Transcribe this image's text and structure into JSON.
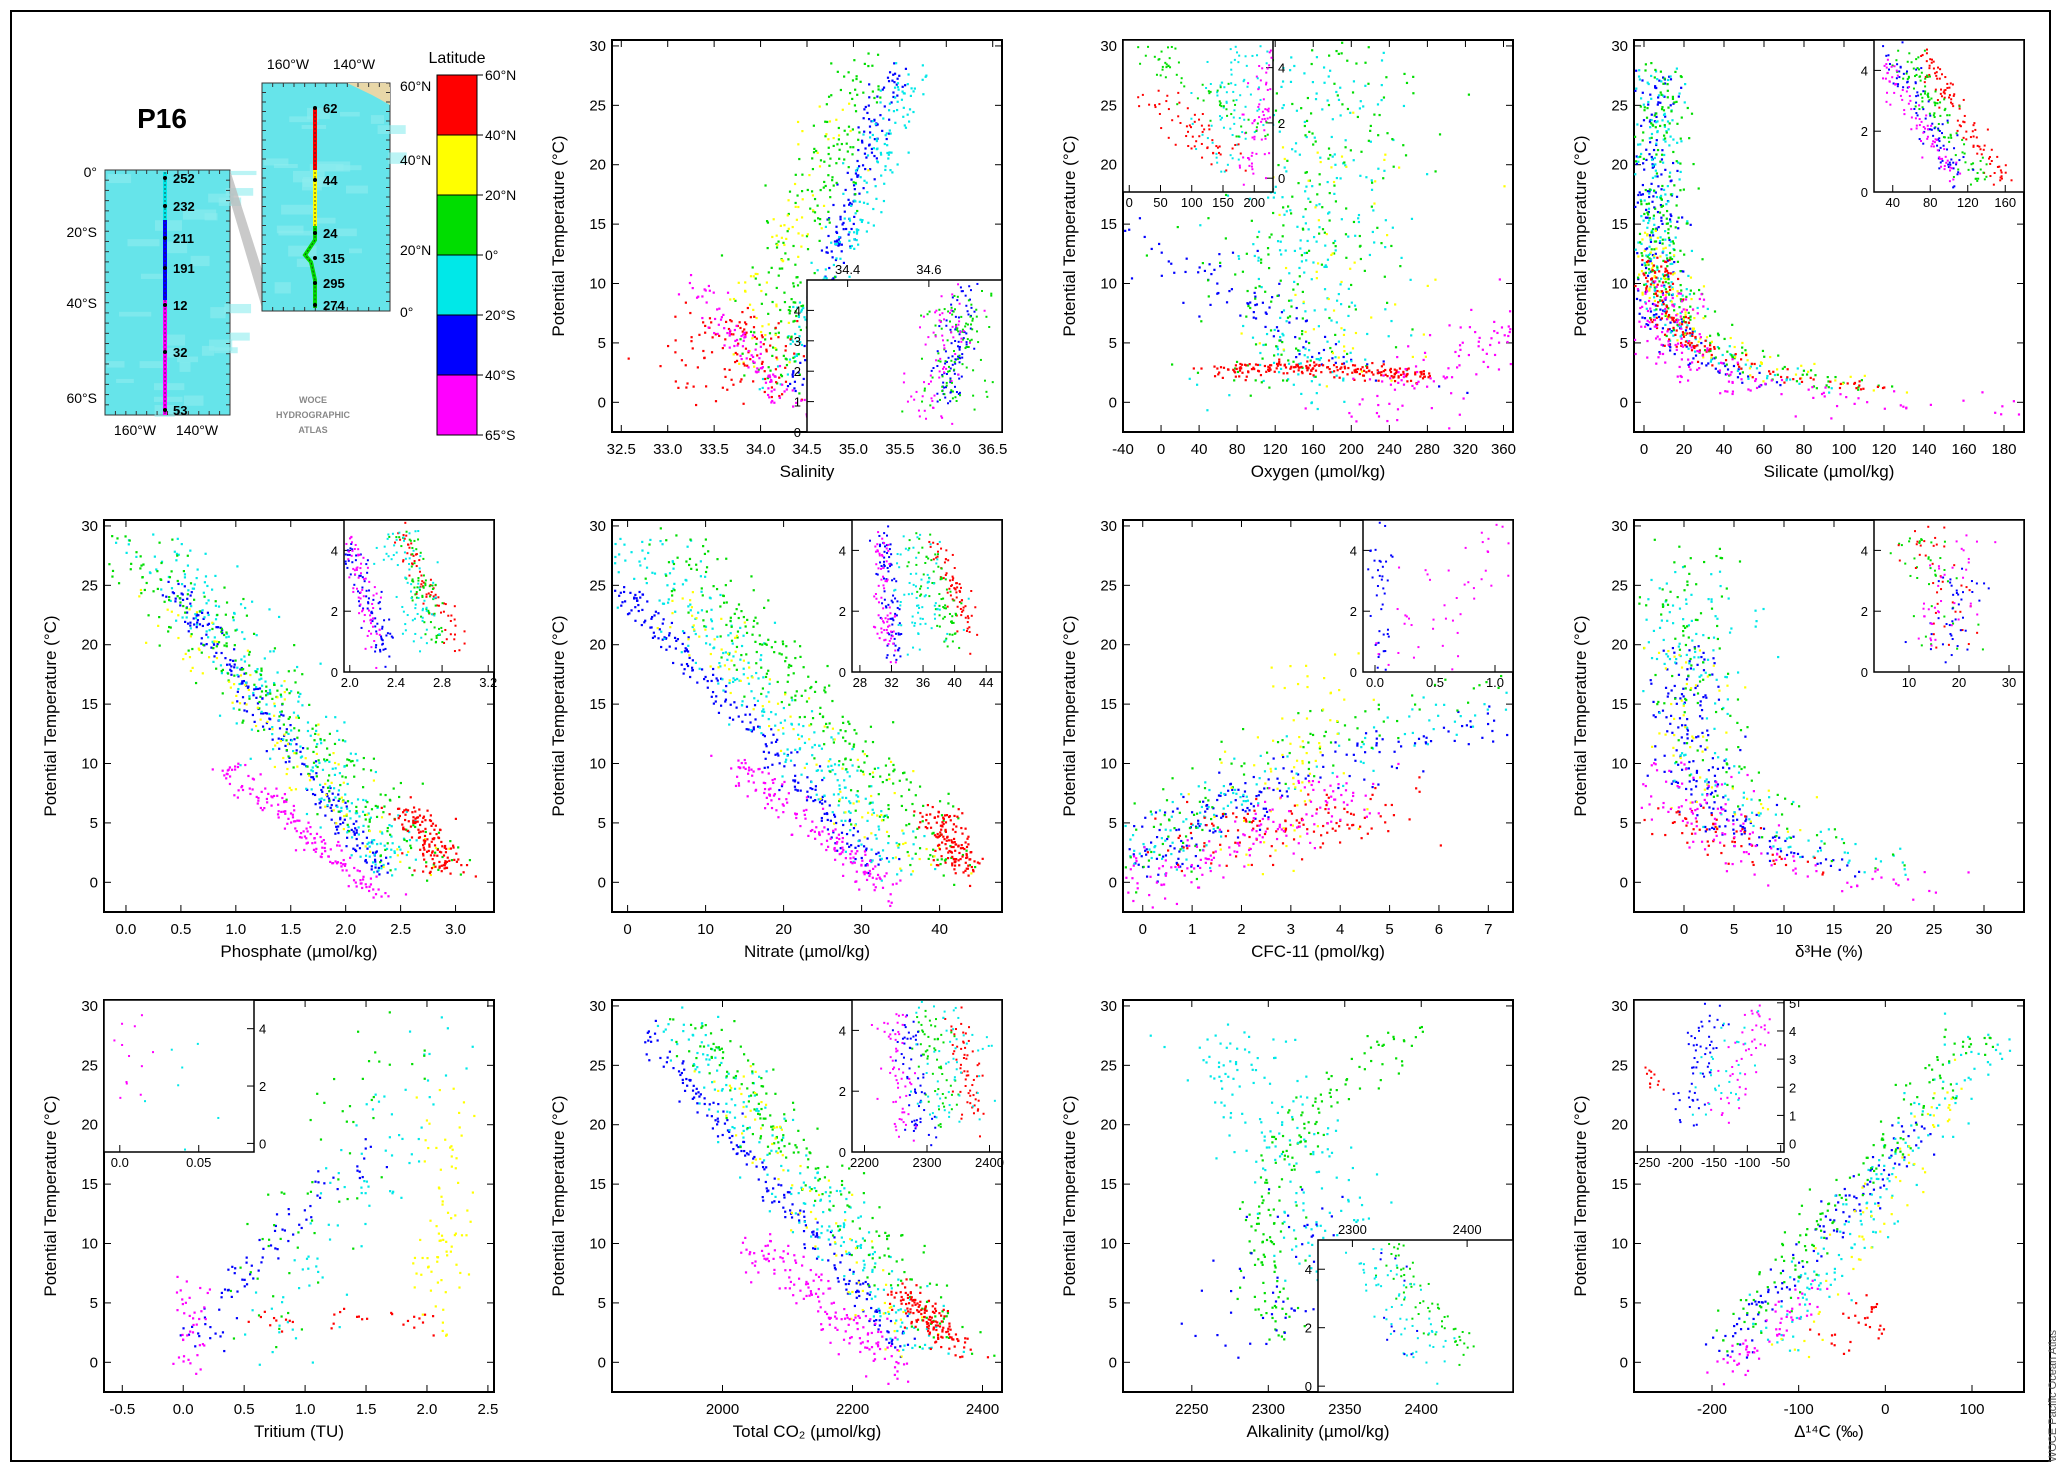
{
  "section_title": "P16",
  "atlas_label": [
    "WOCE",
    "HYDROGRAPHIC",
    "ATLAS"
  ],
  "credit": "WOCE Pacific Ocean Atlas",
  "map": {
    "south_lon_labels": [
      "160°W",
      "140°W"
    ],
    "south_lat_labels": [
      "0°",
      "20°S",
      "40°S",
      "60°S"
    ],
    "south_stations": [
      "252",
      "232",
      "211",
      "191",
      "12",
      "32",
      "53"
    ],
    "north_lon_labels": [
      "160°W",
      "140°W"
    ],
    "north_lat_labels": [
      "60°N",
      "40°N",
      "20°N",
      "0°"
    ],
    "north_stations": [
      "62",
      "44",
      "24",
      "315",
      "295",
      "274"
    ]
  },
  "legend": {
    "title": "Latitude",
    "labels": [
      "60°N",
      "40°N",
      "20°N",
      "0°",
      "20°S",
      "40°S",
      "65°S"
    ],
    "colors": [
      "#ff0000",
      "#ffff00",
      "#00dd00",
      "#00e8e8",
      "#0000ff",
      "#ff00ff"
    ]
  },
  "chart_data": [
    {
      "type": "scatter",
      "xlabel": "Salinity",
      "ylabel": "Potential Temperature (°C)",
      "xlim": [
        32.4,
        36.6
      ],
      "ylim": [
        -2.5,
        30.5
      ],
      "xticks": [
        "32.5",
        "33.0",
        "33.5",
        "34.0",
        "34.5",
        "35.0",
        "35.5",
        "36.0",
        "36.5"
      ],
      "yticks": [
        "0",
        "5",
        "10",
        "15",
        "20",
        "25",
        "30"
      ],
      "inset": {
        "corner": "bottom-right",
        "xlim": [
          34.3,
          34.78
        ],
        "ylim": [
          0,
          5
        ],
        "xticks": [
          "34.4",
          "34.6"
        ],
        "yticks": [
          "0",
          "1",
          "2",
          "3",
          "4"
        ],
        "xaxis": "top"
      }
    },
    {
      "type": "scatter",
      "xlabel": "Oxygen (µmol/kg)",
      "ylabel": "Potential Temperature (°C)",
      "xlim": [
        -40,
        370
      ],
      "ylim": [
        -2.5,
        30.5
      ],
      "xticks": [
        "-40",
        "0",
        "40",
        "80",
        "120",
        "160",
        "200",
        "240",
        "280",
        "320",
        "360"
      ],
      "yticks": [
        "0",
        "5",
        "10",
        "15",
        "20",
        "25",
        "30"
      ],
      "inset": {
        "corner": "top-left",
        "xlim": [
          -10,
          230
        ],
        "ylim": [
          -0.5,
          5
        ],
        "xticks": [
          "0",
          "50",
          "100",
          "150",
          "200"
        ],
        "yticks": [
          "0",
          "2",
          "4"
        ],
        "yaxis": "right"
      }
    },
    {
      "type": "scatter",
      "xlabel": "Silicate (µmol/kg)",
      "ylabel": "Potential Temperature (°C)",
      "xlim": [
        -5,
        190
      ],
      "ylim": [
        -2.5,
        30.5
      ],
      "xticks": [
        "0",
        "20",
        "40",
        "60",
        "80",
        "100",
        "120",
        "140",
        "160",
        "180"
      ],
      "yticks": [
        "0",
        "5",
        "10",
        "15",
        "20",
        "25",
        "30"
      ],
      "inset": {
        "corner": "top-right",
        "xlim": [
          20,
          180
        ],
        "ylim": [
          0,
          5
        ],
        "xticks": [
          "40",
          "80",
          "120",
          "160"
        ],
        "yticks": [
          "0",
          "2",
          "4"
        ]
      }
    },
    {
      "type": "scatter",
      "xlabel": "Phosphate (µmol/kg)",
      "ylabel": "Potential Temperature (°C)",
      "xlim": [
        -0.2,
        3.35
      ],
      "ylim": [
        -2.5,
        30.5
      ],
      "xticks": [
        "0.0",
        "0.5",
        "1.0",
        "1.5",
        "2.0",
        "2.5",
        "3.0"
      ],
      "yticks": [
        "0",
        "5",
        "10",
        "15",
        "20",
        "25",
        "30"
      ],
      "inset": {
        "corner": "top-right",
        "xlim": [
          1.95,
          3.25
        ],
        "ylim": [
          0,
          5
        ],
        "xticks": [
          "2.0",
          "2.4",
          "2.8",
          "3.2"
        ],
        "yticks": [
          "0",
          "2",
          "4"
        ]
      }
    },
    {
      "type": "scatter",
      "xlabel": "Nitrate (µmol/kg)",
      "ylabel": "Potential Temperature (°C)",
      "xlim": [
        -2,
        48
      ],
      "ylim": [
        -2.5,
        30.5
      ],
      "xticks": [
        "0",
        "10",
        "20",
        "30",
        "40"
      ],
      "yticks": [
        "0",
        "5",
        "10",
        "15",
        "20",
        "25",
        "30"
      ],
      "inset": {
        "corner": "top-right",
        "xlim": [
          27,
          46
        ],
        "ylim": [
          0,
          5
        ],
        "xticks": [
          "28",
          "32",
          "36",
          "40",
          "44"
        ],
        "yticks": [
          "0",
          "2",
          "4"
        ]
      }
    },
    {
      "type": "scatter",
      "xlabel": "CFC-11 (pmol/kg)",
      "ylabel": "Potential Temperature (°C)",
      "xlim": [
        -0.4,
        7.5
      ],
      "ylim": [
        -2.5,
        30.5
      ],
      "xticks": [
        "0",
        "1",
        "2",
        "3",
        "4",
        "5",
        "6",
        "7"
      ],
      "yticks": [
        "0",
        "5",
        "10",
        "15",
        "20",
        "25",
        "30"
      ],
      "inset": {
        "corner": "top-right",
        "xlim": [
          -0.1,
          1.15
        ],
        "ylim": [
          0,
          5
        ],
        "xticks": [
          "0.0",
          "0.5",
          "1.0"
        ],
        "yticks": [
          "0",
          "2",
          "4"
        ]
      }
    },
    {
      "type": "scatter",
      "xlabel": "δ³He (%)",
      "ylabel": "Potential Temperature (°C)",
      "xlim": [
        -5,
        34
      ],
      "ylim": [
        -2.5,
        30.5
      ],
      "xticks": [
        "0",
        "5",
        "10",
        "15",
        "20",
        "25",
        "30"
      ],
      "yticks": [
        "0",
        "5",
        "10",
        "15",
        "20",
        "25",
        "30"
      ],
      "inset": {
        "corner": "top-right",
        "xlim": [
          3,
          33
        ],
        "ylim": [
          0,
          5
        ],
        "xticks": [
          "10",
          "20",
          "30"
        ],
        "yticks": [
          "0",
          "2",
          "4"
        ]
      }
    },
    {
      "type": "scatter",
      "xlabel": "Tritium (TU)",
      "ylabel": "Potential Temperature (°C)",
      "xlim": [
        -0.65,
        2.55
      ],
      "ylim": [
        -2.5,
        30.5
      ],
      "xticks": [
        "-0.5",
        "0.0",
        "0.5",
        "1.0",
        "1.5",
        "2.0",
        "2.5"
      ],
      "yticks": [
        "0",
        "5",
        "10",
        "15",
        "20",
        "25",
        "30"
      ],
      "inset": {
        "corner": "top-left",
        "xlim": [
          -0.01,
          0.085
        ],
        "ylim": [
          -0.3,
          5
        ],
        "xticks": [
          "0.0",
          "0.05"
        ],
        "yticks": [
          "0",
          "2",
          "4"
        ],
        "yaxis": "right"
      }
    },
    {
      "type": "scatter",
      "xlabel": "Total CO₂ (µmol/kg)",
      "ylabel": "Potential Temperature (°C)",
      "xlim": [
        1830,
        2430
      ],
      "ylim": [
        -2.5,
        30.5
      ],
      "xticks": [
        "2000",
        "2200",
        "2400"
      ],
      "yticks": [
        "0",
        "5",
        "10",
        "15",
        "20",
        "25",
        "30"
      ],
      "inset": {
        "corner": "top-right",
        "xlim": [
          2180,
          2420
        ],
        "ylim": [
          0,
          5
        ],
        "xticks": [
          "2200",
          "2300",
          "2400"
        ],
        "yticks": [
          "0",
          "2",
          "4"
        ]
      }
    },
    {
      "type": "scatter",
      "xlabel": "Alkalinity (µmol/kg)",
      "ylabel": "Potential Temperature (°C)",
      "xlim": [
        2205,
        2460
      ],
      "ylim": [
        -2.5,
        30.5
      ],
      "xticks": [
        "2250",
        "2300",
        "2350",
        "2400"
      ],
      "yticks": [
        "0",
        "5",
        "10",
        "15",
        "20",
        "25",
        "30"
      ],
      "inset": {
        "corner": "bottom-right",
        "xlim": [
          2270,
          2440
        ],
        "ylim": [
          -0.2,
          5
        ],
        "xticks": [
          "2300",
          "2400"
        ],
        "yticks": [
          "0",
          "2",
          "4"
        ],
        "xaxis": "top"
      }
    },
    {
      "type": "scatter",
      "xlabel": "Δ¹⁴C (‰)",
      "ylabel": "Potential Temperature (°C)",
      "xlim": [
        -290,
        160
      ],
      "ylim": [
        -2.5,
        30.5
      ],
      "xticks": [
        "-200",
        "-100",
        "0",
        "100"
      ],
      "yticks": [
        "0",
        "5",
        "10",
        "15",
        "20",
        "25",
        "30"
      ],
      "inset": {
        "corner": "top-left",
        "xlim": [
          -270,
          -45
        ],
        "ylim": [
          -0.3,
          5.1
        ],
        "xticks": [
          "-250",
          "-200",
          "-150",
          "-100",
          "-50"
        ],
        "yticks": [
          "0",
          "1",
          "2",
          "3",
          "4",
          "5"
        ],
        "yaxis": "right"
      }
    }
  ]
}
